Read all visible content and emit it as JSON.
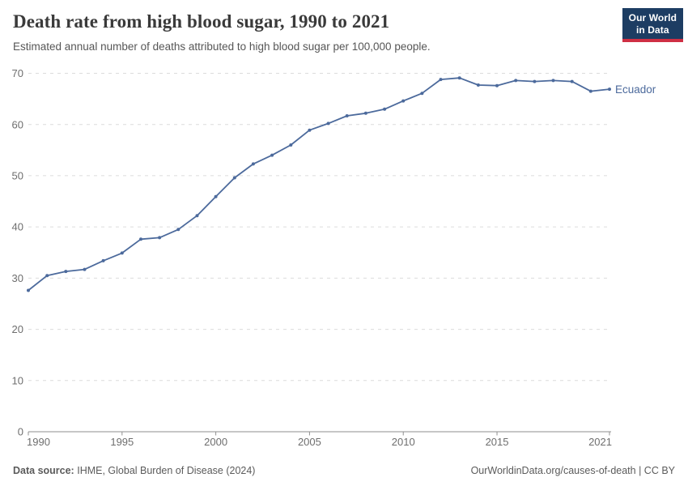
{
  "header": {
    "title": "Death rate from high blood sugar, 1990 to 2021",
    "subtitle": "Estimated annual number of deaths attributed to high blood sugar per 100,000 people."
  },
  "logo": {
    "line1": "Our World",
    "line2": "in Data",
    "bg_color": "#1d3d63",
    "accent_color": "#cf2f44",
    "text_color": "#ffffff"
  },
  "colors": {
    "line": "#4c6a9c",
    "grid": "#dcdcdc",
    "axis": "#8f8f8f",
    "tick_label": "#6e6e6e",
    "entity_label": "#4c6a9c"
  },
  "chart_data": {
    "type": "line",
    "title": "Death rate from high blood sugar, 1990 to 2021",
    "subtitle": "Estimated annual number of deaths attributed to high blood sugar per 100,000 people.",
    "xlabel": "",
    "ylabel": "",
    "x": [
      1990,
      1991,
      1992,
      1993,
      1994,
      1995,
      1996,
      1997,
      1998,
      1999,
      2000,
      2001,
      2002,
      2003,
      2004,
      2005,
      2006,
      2007,
      2008,
      2009,
      2010,
      2011,
      2012,
      2013,
      2014,
      2015,
      2016,
      2017,
      2018,
      2019,
      2020,
      2021
    ],
    "series": [
      {
        "name": "Ecuador",
        "color": "#4c6a9c",
        "values": [
          27.6,
          30.5,
          31.3,
          31.7,
          33.4,
          34.9,
          37.6,
          37.9,
          39.5,
          42.2,
          45.9,
          49.6,
          52.3,
          54.0,
          56.0,
          58.9,
          60.2,
          61.7,
          62.2,
          63.0,
          64.6,
          66.1,
          68.8,
          69.1,
          67.7,
          67.6,
          68.6,
          68.4,
          68.6,
          68.4,
          66.5,
          66.9
        ]
      }
    ],
    "ylim": [
      0,
      70
    ],
    "yticks": [
      0,
      10,
      20,
      30,
      40,
      50,
      60,
      70
    ],
    "xticks": [
      1990,
      1995,
      2000,
      2005,
      2010,
      2015,
      2021
    ],
    "grid": "horizontal-dashed",
    "legend_position": "end-of-line-label",
    "marker": "point"
  },
  "footer": {
    "source_label": "Data source:",
    "source_text": "IHME, Global Burden of Disease (2024)",
    "right_text": "OurWorldinData.org/causes-of-death | CC BY"
  }
}
